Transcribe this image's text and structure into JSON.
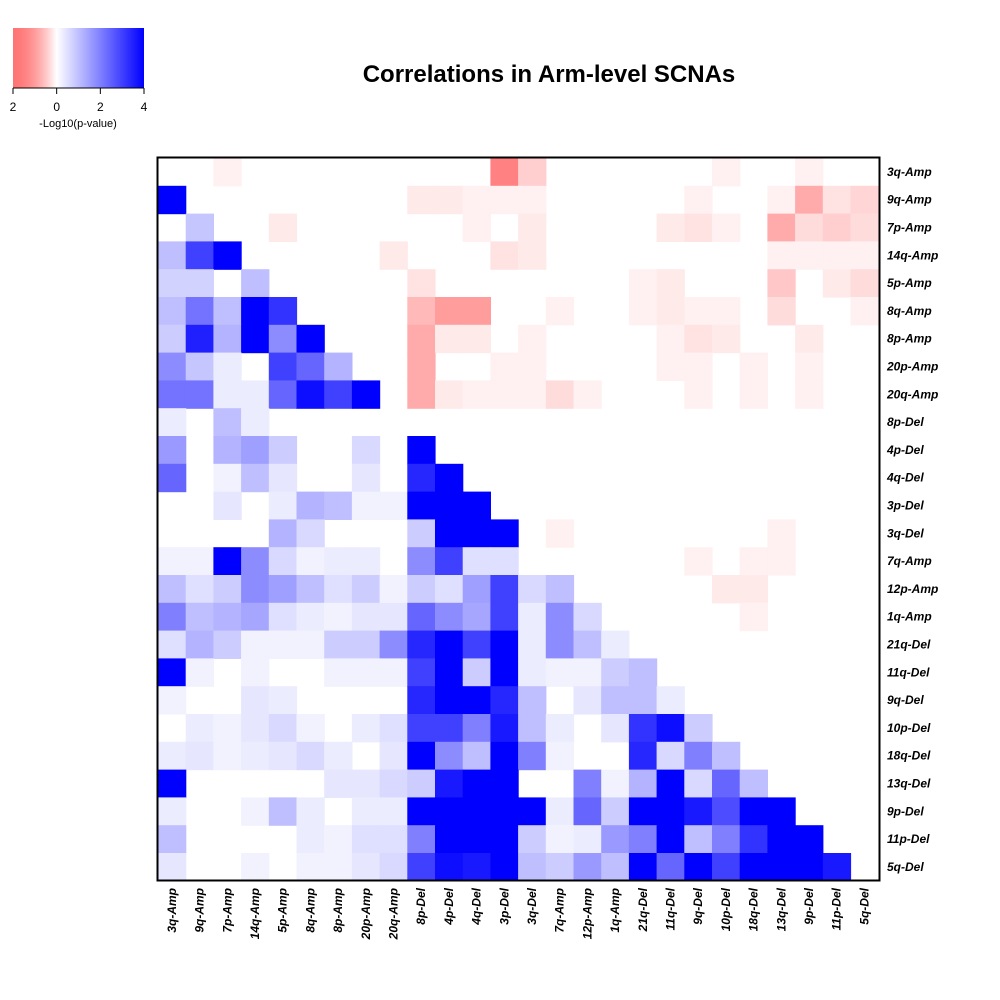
{
  "chart_data": {
    "type": "heatmap",
    "title": "Correlations in Arm-level SCNAs",
    "labels": [
      "3q-Amp",
      "9q-Amp",
      "7p-Amp",
      "14q-Amp",
      "5p-Amp",
      "8q-Amp",
      "8p-Amp",
      "20p-Amp",
      "20q-Amp",
      "8p-Del",
      "4p-Del",
      "4q-Del",
      "3p-Del",
      "3q-Del",
      "7q-Amp",
      "12p-Amp",
      "1q-Amp",
      "21q-Del",
      "11q-Del",
      "9q-Del",
      "10p-Del",
      "18q-Del",
      "13q-Del",
      "9p-Del",
      "11p-Del",
      "5q-Del"
    ],
    "row_labels": [
      "3q-Amp",
      "9q-Amp",
      "7p-Amp",
      "14q-Amp",
      "5p-Amp",
      "8q-Amp",
      "8p-Amp",
      "20p-Amp",
      "20q-Amp",
      "8p-Del",
      "4p-Del",
      "4q-Del",
      "3p-Del",
      "3q-Del",
      "7q-Amp",
      "12p-Amp",
      "1q-Amp",
      "21q-Del",
      "11q-Del",
      "9q-Del",
      "10p-Del",
      "18q-Del",
      "13q-Del",
      "9p-Del",
      "11p-Del",
      "5q-Del"
    ],
    "column_labels": [
      "3q-Amp",
      "9q-Amp",
      "7p-Amp",
      "14q-Amp",
      "5p-Amp",
      "8q-Amp",
      "8p-Amp",
      "20p-Amp",
      "20q-Amp",
      "8p-Del",
      "4p-Del",
      "4q-Del",
      "3p-Del",
      "3q-Del",
      "7q-Amp",
      "12p-Amp",
      "1q-Amp",
      "21q-Del",
      "11q-Del",
      "9q-Del",
      "10p-Del",
      "18q-Del",
      "13q-Del",
      "9p-Del",
      "11p-Del",
      "5q-Del"
    ],
    "value_description": "Lower triangle: positive correlation (blue, +-log10 p). Upper triangle: negative correlation (red, shown as negative values).",
    "legend": {
      "title": "-Log10(p-value)",
      "ticks": [
        "2",
        "0",
        "2",
        "4"
      ],
      "range": [
        -2,
        4
      ]
    },
    "lower": [
      [],
      [
        4
      ],
      [
        0,
        0.9
      ],
      [
        1,
        3.0,
        4
      ],
      [
        0.7,
        0.7,
        0,
        1.0
      ],
      [
        1.0,
        2.2,
        1.0,
        4,
        3.2
      ],
      [
        0.8,
        3.5,
        1.2,
        4,
        1.8,
        4
      ],
      [
        1.8,
        0.9,
        0.3,
        0,
        3.0,
        2.4,
        1.2
      ],
      [
        2.2,
        2.2,
        0.3,
        0.3,
        2.4,
        3.8,
        3.0,
        4
      ],
      [
        0.3,
        0,
        1.0,
        0.3,
        0,
        0,
        0,
        0,
        0
      ],
      [
        1.6,
        0,
        1.2,
        1.5,
        0.8,
        0,
        0,
        0.6,
        0,
        4
      ],
      [
        2.4,
        0,
        0.2,
        1.0,
        0.4,
        0,
        0,
        0.4,
        0,
        3.4,
        4
      ],
      [
        0,
        0,
        0.4,
        0,
        0.3,
        1.2,
        1.0,
        0.2,
        0.2,
        4,
        4,
        4
      ],
      [
        0,
        0,
        0,
        0,
        1.2,
        0.6,
        0,
        0,
        0,
        0.8,
        4,
        4,
        4
      ],
      [
        0.2,
        0.2,
        4,
        1.8,
        0.6,
        0.2,
        0.3,
        0.3,
        0,
        1.8,
        3.0,
        0.5,
        0.5,
        0
      ],
      [
        1.0,
        0.5,
        0.8,
        1.8,
        1.5,
        1.0,
        0.5,
        0.8,
        0.2,
        0.8,
        0.5,
        1.5,
        3.0,
        0.6,
        1.0
      ],
      [
        2.0,
        1.0,
        1.2,
        1.4,
        0.5,
        0.3,
        0.2,
        0.4,
        0.4,
        2.4,
        1.8,
        1.4,
        3.0,
        0.3,
        1.8,
        0.6
      ],
      [
        0.5,
        1.2,
        0.8,
        0.2,
        0.2,
        0.2,
        0.8,
        0.8,
        1.8,
        3.4,
        4,
        3.0,
        4,
        0.3,
        1.8,
        1.0,
        0.3
      ],
      [
        4,
        0.2,
        0,
        0.2,
        0,
        0,
        0.2,
        0.2,
        0.2,
        3.0,
        4,
        0.8,
        4,
        0.3,
        0.2,
        0.2,
        0.8,
        1.0
      ],
      [
        0.2,
        0,
        0,
        0.4,
        0.3,
        0,
        0,
        0,
        0,
        3.4,
        4,
        4,
        3.4,
        1.0,
        0,
        0.4,
        1.0,
        1.0,
        0.3
      ],
      [
        0,
        0.3,
        0.2,
        0.4,
        0.6,
        0.2,
        0,
        0.3,
        0.5,
        3.0,
        3.0,
        2.0,
        3.6,
        1.0,
        0.3,
        0,
        0.4,
        3.2,
        3.8,
        0.8
      ],
      [
        0.3,
        0.4,
        0.2,
        0.3,
        0.4,
        0.6,
        0.3,
        0,
        0.4,
        4,
        1.8,
        1.0,
        4,
        2.0,
        0.2,
        0,
        0,
        3.4,
        0.6,
        2.0,
        1.0
      ],
      [
        4,
        0,
        0,
        0,
        0,
        0,
        0.4,
        0.4,
        0.6,
        0.8,
        3.6,
        4,
        4,
        0,
        0,
        2.0,
        0.2,
        1.2,
        4,
        0.6,
        2.4,
        1.0
      ],
      [
        0.3,
        0,
        0,
        0.2,
        1.0,
        0.3,
        0,
        0.3,
        0.3,
        4,
        4,
        4,
        4,
        4,
        0.3,
        2.4,
        0.8,
        4,
        4,
        3.6,
        2.8,
        4,
        4
      ],
      [
        1.0,
        0,
        0,
        0,
        0,
        0.3,
        0.2,
        0.5,
        0.5,
        2.0,
        4,
        4,
        4,
        0.8,
        0.2,
        0.3,
        1.6,
        2.0,
        4,
        1.0,
        2.0,
        3.2,
        4,
        4
      ],
      [
        0.4,
        0,
        0,
        0.2,
        0,
        0.2,
        0.2,
        0.4,
        0.6,
        3.0,
        3.8,
        3.6,
        4,
        1.0,
        0.8,
        1.6,
        1.0,
        4,
        2.4,
        4,
        3.0,
        4,
        4,
        4,
        3.6
      ]
    ],
    "upper": [
      {
        "row": "3q-Amp",
        "col": "7p-Amp",
        "value": -0.2
      },
      {
        "row": "3q-Amp",
        "col": "3p-Del",
        "value": -1.8
      },
      {
        "row": "3q-Amp",
        "col": "3q-Del",
        "value": -0.7
      },
      {
        "row": "3q-Amp",
        "col": "10p-Del",
        "value": -0.2
      },
      {
        "row": "3q-Amp",
        "col": "9p-Del",
        "value": -0.2
      },
      {
        "row": "9q-Amp",
        "col": "8p-Del",
        "value": -0.3
      },
      {
        "row": "9q-Amp",
        "col": "4p-Del",
        "value": -0.3
      },
      {
        "row": "9q-Amp",
        "col": "4q-Del",
        "value": -0.2
      },
      {
        "row": "9q-Amp",
        "col": "3p-Del",
        "value": -0.2
      },
      {
        "row": "9q-Amp",
        "col": "3q-Del",
        "value": -0.2
      },
      {
        "row": "9q-Amp",
        "col": "9q-Del",
        "value": -0.2
      },
      {
        "row": "9q-Amp",
        "col": "13q-Del",
        "value": -0.2
      },
      {
        "row": "9q-Amp",
        "col": "9p-Del",
        "value": -1.2
      },
      {
        "row": "9q-Amp",
        "col": "11p-Del",
        "value": -0.4
      },
      {
        "row": "9q-Amp",
        "col": "5q-Del",
        "value": -0.6
      },
      {
        "row": "7p-Amp",
        "col": "5p-Amp",
        "value": -0.3
      },
      {
        "row": "7p-Amp",
        "col": "4q-Del",
        "value": -0.2
      },
      {
        "row": "7p-Amp",
        "col": "3q-Del",
        "value": -0.3
      },
      {
        "row": "7p-Amp",
        "col": "11q-Del",
        "value": -0.3
      },
      {
        "row": "7p-Amp",
        "col": "9q-Del",
        "value": -0.4
      },
      {
        "row": "7p-Amp",
        "col": "10p-Del",
        "value": -0.2
      },
      {
        "row": "7p-Amp",
        "col": "13q-Del",
        "value": -1.2
      },
      {
        "row": "7p-Amp",
        "col": "9p-Del",
        "value": -0.5
      },
      {
        "row": "7p-Amp",
        "col": "11p-Del",
        "value": -0.7
      },
      {
        "row": "7p-Amp",
        "col": "5q-Del",
        "value": -0.5
      },
      {
        "row": "14q-Amp",
        "col": "20q-Amp",
        "value": -0.3
      },
      {
        "row": "14q-Amp",
        "col": "3p-Del",
        "value": -0.4
      },
      {
        "row": "14q-Amp",
        "col": "3q-Del",
        "value": -0.3
      },
      {
        "row": "14q-Amp",
        "col": "13q-Del",
        "value": -0.2
      },
      {
        "row": "14q-Amp",
        "col": "9p-Del",
        "value": -0.2
      },
      {
        "row": "14q-Amp",
        "col": "11p-Del",
        "value": -0.2
      },
      {
        "row": "14q-Amp",
        "col": "5q-Del",
        "value": -0.2
      },
      {
        "row": "5p-Amp",
        "col": "8p-Del",
        "value": -0.4
      },
      {
        "row": "5p-Amp",
        "col": "21q-Del",
        "value": -0.2
      },
      {
        "row": "5p-Amp",
        "col": "11q-Del",
        "value": -0.3
      },
      {
        "row": "5p-Amp",
        "col": "13q-Del",
        "value": -0.8
      },
      {
        "row": "5p-Amp",
        "col": "11p-Del",
        "value": -0.3
      },
      {
        "row": "5p-Amp",
        "col": "5q-Del",
        "value": -0.5
      },
      {
        "row": "8q-Amp",
        "col": "8p-Del",
        "value": -1.0
      },
      {
        "row": "8q-Amp",
        "col": "4p-Del",
        "value": -1.4
      },
      {
        "row": "8q-Amp",
        "col": "4q-Del",
        "value": -1.4
      },
      {
        "row": "8q-Amp",
        "col": "7q-Amp",
        "value": -0.2
      },
      {
        "row": "8q-Amp",
        "col": "21q-Del",
        "value": -0.2
      },
      {
        "row": "8q-Amp",
        "col": "11q-Del",
        "value": -0.3
      },
      {
        "row": "8q-Amp",
        "col": "9q-Del",
        "value": -0.2
      },
      {
        "row": "8q-Amp",
        "col": "10p-Del",
        "value": -0.2
      },
      {
        "row": "8q-Amp",
        "col": "13q-Del",
        "value": -0.5
      },
      {
        "row": "8q-Amp",
        "col": "5q-Del",
        "value": -0.2
      },
      {
        "row": "8p-Amp",
        "col": "8p-Del",
        "value": -1.2
      },
      {
        "row": "8p-Amp",
        "col": "4p-Del",
        "value": -0.3
      },
      {
        "row": "8p-Amp",
        "col": "4q-Del",
        "value": -0.3
      },
      {
        "row": "8p-Amp",
        "col": "3q-Del",
        "value": -0.2
      },
      {
        "row": "8p-Amp",
        "col": "11q-Del",
        "value": -0.2
      },
      {
        "row": "8p-Amp",
        "col": "9q-Del",
        "value": -0.4
      },
      {
        "row": "8p-Amp",
        "col": "10p-Del",
        "value": -0.3
      },
      {
        "row": "8p-Amp",
        "col": "9p-Del",
        "value": -0.3
      },
      {
        "row": "20p-Amp",
        "col": "8p-Del",
        "value": -1.2
      },
      {
        "row": "20p-Amp",
        "col": "3p-Del",
        "value": -0.2
      },
      {
        "row": "20p-Amp",
        "col": "3q-Del",
        "value": -0.2
      },
      {
        "row": "20p-Amp",
        "col": "11q-Del",
        "value": -0.2
      },
      {
        "row": "20p-Amp",
        "col": "9q-Del",
        "value": -0.2
      },
      {
        "row": "20p-Amp",
        "col": "18q-Del",
        "value": -0.2
      },
      {
        "row": "20p-Amp",
        "col": "9p-Del",
        "value": -0.2
      },
      {
        "row": "20q-Amp",
        "col": "8p-Del",
        "value": -1.2
      },
      {
        "row": "20q-Amp",
        "col": "4p-Del",
        "value": -0.3
      },
      {
        "row": "20q-Amp",
        "col": "4q-Del",
        "value": -0.2
      },
      {
        "row": "20q-Amp",
        "col": "3p-Del",
        "value": -0.2
      },
      {
        "row": "20q-Amp",
        "col": "3q-Del",
        "value": -0.2
      },
      {
        "row": "20q-Amp",
        "col": "7q-Amp",
        "value": -0.5
      },
      {
        "row": "20q-Amp",
        "col": "12p-Amp",
        "value": -0.2
      },
      {
        "row": "20q-Amp",
        "col": "9q-Del",
        "value": -0.2
      },
      {
        "row": "20q-Amp",
        "col": "18q-Del",
        "value": -0.2
      },
      {
        "row": "20q-Amp",
        "col": "9p-Del",
        "value": -0.2
      },
      {
        "row": "3q-Del",
        "col": "7q-Amp",
        "value": -0.2
      },
      {
        "row": "3q-Del",
        "col": "13q-Del",
        "value": -0.2
      },
      {
        "row": "7q-Amp",
        "col": "9q-Del",
        "value": -0.2
      },
      {
        "row": "7q-Amp",
        "col": "18q-Del",
        "value": -0.2
      },
      {
        "row": "7q-Amp",
        "col": "13q-Del",
        "value": -0.2
      },
      {
        "row": "12p-Amp",
        "col": "10p-Del",
        "value": -0.3
      },
      {
        "row": "12p-Amp",
        "col": "18q-Del",
        "value": -0.3
      },
      {
        "row": "1q-Amp",
        "col": "18q-Del",
        "value": -0.2
      }
    ]
  }
}
